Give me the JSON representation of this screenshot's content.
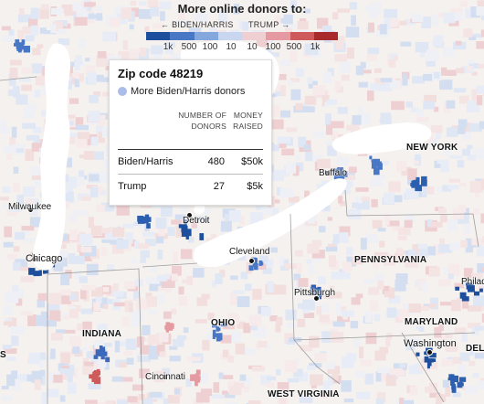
{
  "legend": {
    "title": "More online donors to:",
    "left_direction": "← BIDEN/HARRIS",
    "right_direction": "TRUMP →",
    "swatch_colors": [
      "#1d4f9c",
      "#4877c6",
      "#85a8dc",
      "#c8d6ef",
      "#f0cfd3",
      "#e49aa0",
      "#cf5a5c",
      "#a82a2a"
    ],
    "biden_ticks": [
      "1k",
      "500",
      "100",
      "10"
    ],
    "trump_ticks": [
      "10",
      "100",
      "500",
      "1k"
    ]
  },
  "tooltip": {
    "title": "Zip code 48219",
    "legend_text": "More Biden/Harris donors",
    "col_donors": "NUMBER OF DONORS",
    "col_money": "MONEY RAISED",
    "rows": [
      {
        "candidate": "Biden/Harris",
        "donors": "480",
        "money": "$50k"
      },
      {
        "candidate": "Trump",
        "donors": "27",
        "money": "$5k"
      }
    ]
  },
  "states": {
    "new_york": "NEW YORK",
    "pennsylvania": "PENNSYLVANIA",
    "indiana": "INDIANA",
    "ohio": "OHIO",
    "maryland": "MARYLAND",
    "west_virginia": "WEST VIRGINIA",
    "illinois_partial": "S",
    "delaware_partial": "DELA"
  },
  "cities": {
    "buffalo": "Buffalo",
    "milwaukee": "Milwaukee",
    "detroit": "Detroit",
    "chicago": "Chicago",
    "cleveland": "Cleveland",
    "pittsburgh": "Pittsburgh",
    "philadelphia": "Philad",
    "washington": "Washington",
    "cincinnati": "Cincinnati"
  }
}
